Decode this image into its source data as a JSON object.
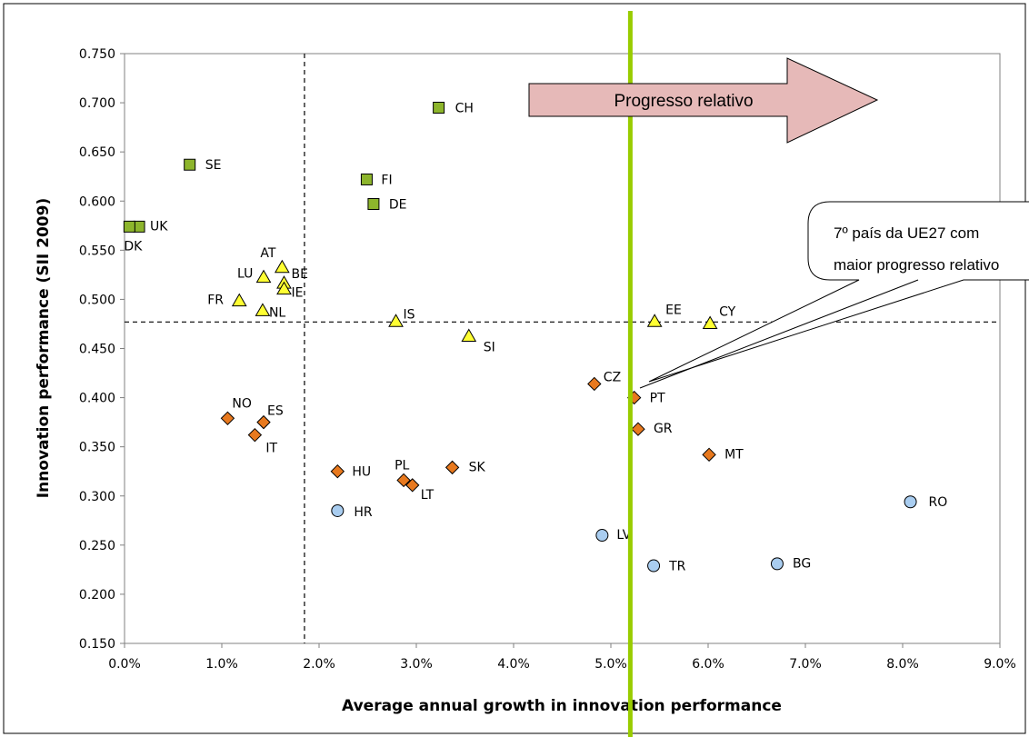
{
  "chart_data": {
    "type": "scatter",
    "xlabel": "Average annual growth in innovation performance",
    "ylabel": "Innovation performance (SII 2009)",
    "xlim": [
      0.0,
      0.09
    ],
    "ylim": [
      0.15,
      0.75
    ],
    "x_ticks": [
      "0.0%",
      "1.0%",
      "2.0%",
      "3.0%",
      "4.0%",
      "5.0%",
      "6.0%",
      "7.0%",
      "8.0%",
      "9.0%"
    ],
    "y_ticks": [
      "0.150",
      "0.200",
      "0.250",
      "0.300",
      "0.350",
      "0.400",
      "0.450",
      "0.500",
      "0.550",
      "0.600",
      "0.650",
      "0.700",
      "0.750"
    ],
    "grid": false,
    "reference_lines": {
      "average_growth": 0.0185,
      "average_performance": 0.477,
      "highlight_growth": 0.052
    },
    "colors": {
      "green_square": "#8db52c",
      "yellow_triangle": "#ffff33",
      "orange_diamond": "#e8791e",
      "blue_circle": "#a9cdf0",
      "highlight_line": "#99cc00",
      "arrow_fill": "#e6b9b8"
    },
    "series": [
      {
        "marker": "square",
        "points": [
          {
            "label": "CH",
            "x": 0.0323,
            "y": 0.695
          },
          {
            "label": "SE",
            "x": 0.0067,
            "y": 0.637
          },
          {
            "label": "FI",
            "x": 0.0249,
            "y": 0.622
          },
          {
            "label": "DE",
            "x": 0.0256,
            "y": 0.597
          },
          {
            "label": "UK",
            "x": 0.0015,
            "y": 0.574
          },
          {
            "label": "DK",
            "x": 0.0005,
            "y": 0.574
          }
        ]
      },
      {
        "marker": "triangle",
        "points": [
          {
            "label": "AT",
            "x": 0.0162,
            "y": 0.532
          },
          {
            "label": "LU",
            "x": 0.0143,
            "y": 0.522
          },
          {
            "label": "BE",
            "x": 0.0164,
            "y": 0.516
          },
          {
            "label": "IE",
            "x": 0.0164,
            "y": 0.51
          },
          {
            "label": "FR",
            "x": 0.0118,
            "y": 0.498
          },
          {
            "label": "NL",
            "x": 0.0142,
            "y": 0.488
          },
          {
            "label": "IS",
            "x": 0.0279,
            "y": 0.477
          },
          {
            "label": "SI",
            "x": 0.0354,
            "y": 0.462
          },
          {
            "label": "EE",
            "x": 0.0545,
            "y": 0.477
          },
          {
            "label": "CY",
            "x": 0.0602,
            "y": 0.475
          }
        ]
      },
      {
        "marker": "diamond",
        "points": [
          {
            "label": "CZ",
            "x": 0.0483,
            "y": 0.414
          },
          {
            "label": "PT",
            "x": 0.0524,
            "y": 0.4
          },
          {
            "label": "GR",
            "x": 0.0528,
            "y": 0.368
          },
          {
            "label": "MT",
            "x": 0.0601,
            "y": 0.342
          },
          {
            "label": "NO",
            "x": 0.0106,
            "y": 0.379
          },
          {
            "label": "ES",
            "x": 0.0143,
            "y": 0.375
          },
          {
            "label": "IT",
            "x": 0.0134,
            "y": 0.362
          },
          {
            "label": "HU",
            "x": 0.0219,
            "y": 0.325
          },
          {
            "label": "PL",
            "x": 0.0287,
            "y": 0.316
          },
          {
            "label": "LT",
            "x": 0.0296,
            "y": 0.311
          },
          {
            "label": "SK",
            "x": 0.0337,
            "y": 0.329
          }
        ]
      },
      {
        "marker": "circle",
        "points": [
          {
            "label": "RO",
            "x": 0.0808,
            "y": 0.294
          },
          {
            "label": "HR",
            "x": 0.0219,
            "y": 0.285
          },
          {
            "label": "LV",
            "x": 0.0491,
            "y": 0.26
          },
          {
            "label": "TR",
            "x": 0.0544,
            "y": 0.229
          },
          {
            "label": "BG",
            "x": 0.0671,
            "y": 0.231
          }
        ]
      }
    ]
  },
  "annotations": {
    "arrow_text": "Progresso relativo",
    "callout_line1": "7º país da UE27 com",
    "callout_line2": "maior progresso relativo"
  }
}
